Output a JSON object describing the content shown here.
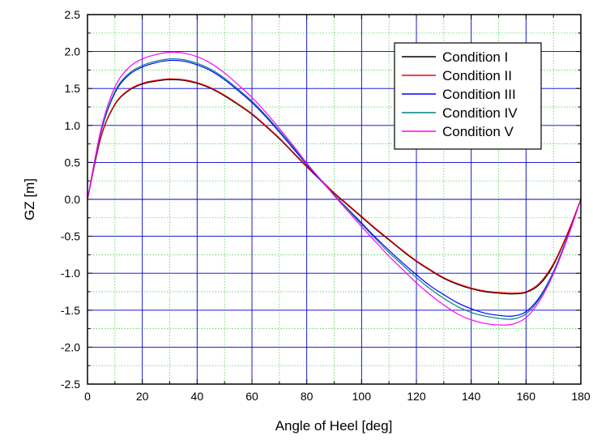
{
  "chart_data": {
    "type": "line",
    "title": "",
    "xlabel": "Angle of Heel [deg]",
    "ylabel": "GZ [m]",
    "xlim": [
      0,
      180
    ],
    "ylim": [
      -2.5,
      2.5
    ],
    "xticks": [
      0,
      20,
      40,
      60,
      80,
      100,
      120,
      140,
      160,
      180
    ],
    "yticks": [
      -2.5,
      -2.0,
      -1.5,
      -1.0,
      -0.5,
      0.0,
      0.5,
      1.0,
      1.5,
      2.0,
      2.5
    ],
    "xtick_labels": [
      "0",
      "20",
      "40",
      "60",
      "80",
      "100",
      "120",
      "140",
      "160",
      "180"
    ],
    "ytick_labels": [
      "-2.5",
      "-2.0",
      "-1.5",
      "-1.0",
      "-0.5",
      "0.0",
      "0.5",
      "1.0",
      "1.5",
      "2.0",
      "2.5"
    ],
    "grid": true,
    "legend_position": "top-right",
    "colors": {
      "major_grid": "#0000cc",
      "minor_grid": "#33cc33",
      "axis": "#000000"
    },
    "x": [
      0,
      5,
      10,
      15,
      20,
      25,
      30,
      35,
      40,
      45,
      50,
      55,
      60,
      65,
      70,
      75,
      80,
      85,
      90,
      95,
      100,
      105,
      110,
      115,
      120,
      125,
      130,
      135,
      140,
      145,
      150,
      155,
      160,
      165,
      170,
      175,
      180
    ],
    "series": [
      {
        "name": "Condition I",
        "color": "#000000",
        "values": [
          0.0,
          0.85,
          1.28,
          1.47,
          1.56,
          1.6,
          1.62,
          1.61,
          1.57,
          1.5,
          1.4,
          1.28,
          1.15,
          0.99,
          0.82,
          0.63,
          0.44,
          0.26,
          0.08,
          -0.08,
          -0.24,
          -0.4,
          -0.55,
          -0.7,
          -0.84,
          -0.96,
          -1.07,
          -1.15,
          -1.21,
          -1.25,
          -1.27,
          -1.28,
          -1.26,
          -1.15,
          -0.89,
          -0.48,
          0.0
        ]
      },
      {
        "name": "Condition II",
        "color": "#ff0000",
        "values": [
          0.0,
          0.86,
          1.29,
          1.48,
          1.57,
          1.61,
          1.63,
          1.62,
          1.58,
          1.51,
          1.41,
          1.29,
          1.16,
          1.0,
          0.83,
          0.64,
          0.45,
          0.27,
          0.09,
          -0.07,
          -0.23,
          -0.39,
          -0.54,
          -0.69,
          -0.83,
          -0.95,
          -1.06,
          -1.14,
          -1.2,
          -1.24,
          -1.26,
          -1.27,
          -1.25,
          -1.13,
          -0.87,
          -0.47,
          0.0
        ]
      },
      {
        "name": "Condition III",
        "color": "#0000ff",
        "values": [
          0.0,
          0.92,
          1.44,
          1.68,
          1.79,
          1.85,
          1.88,
          1.87,
          1.82,
          1.74,
          1.62,
          1.47,
          1.31,
          1.12,
          0.91,
          0.69,
          0.47,
          0.26,
          0.06,
          -0.13,
          -0.32,
          -0.51,
          -0.69,
          -0.86,
          -1.02,
          -1.17,
          -1.29,
          -1.4,
          -1.48,
          -1.54,
          -1.57,
          -1.58,
          -1.52,
          -1.32,
          -0.98,
          -0.52,
          0.0
        ]
      },
      {
        "name": "Condition IV",
        "color": "#008080",
        "values": [
          0.0,
          0.93,
          1.46,
          1.7,
          1.81,
          1.87,
          1.9,
          1.89,
          1.84,
          1.76,
          1.64,
          1.49,
          1.33,
          1.14,
          0.93,
          0.71,
          0.48,
          0.27,
          0.06,
          -0.14,
          -0.34,
          -0.53,
          -0.72,
          -0.89,
          -1.06,
          -1.21,
          -1.34,
          -1.45,
          -1.53,
          -1.58,
          -1.61,
          -1.62,
          -1.55,
          -1.34,
          -0.99,
          -0.53,
          0.0
        ]
      },
      {
        "name": "Condition V",
        "color": "#ff00ff",
        "values": [
          0.0,
          0.96,
          1.52,
          1.78,
          1.9,
          1.96,
          1.99,
          1.98,
          1.93,
          1.84,
          1.71,
          1.55,
          1.38,
          1.18,
          0.96,
          0.73,
          0.49,
          0.27,
          0.05,
          -0.16,
          -0.37,
          -0.57,
          -0.77,
          -0.95,
          -1.13,
          -1.29,
          -1.43,
          -1.55,
          -1.63,
          -1.68,
          -1.7,
          -1.69,
          -1.6,
          -1.37,
          -1.01,
          -0.54,
          0.0
        ]
      }
    ]
  }
}
